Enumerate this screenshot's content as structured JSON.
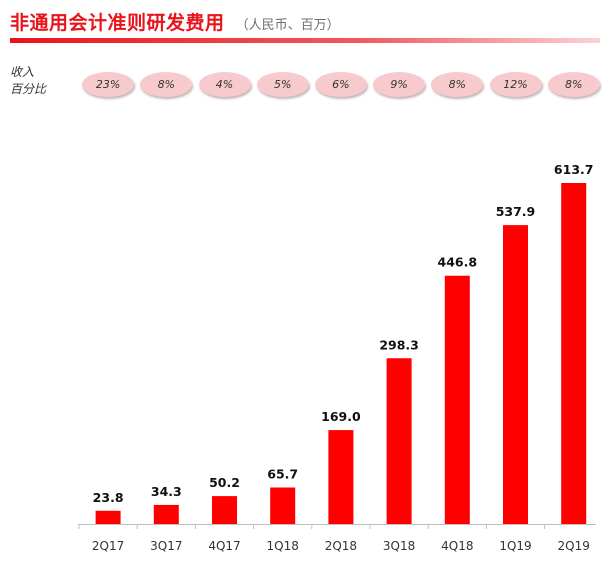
{
  "header": {
    "title": "非通用会计准则研发费用",
    "unit": "（人民币、百万）"
  },
  "ratio": {
    "label_line1": "收入",
    "label_line2": "百分比"
  },
  "colors": {
    "bar": "#ff0000",
    "accent": "#e8141b",
    "pill": "#f7cbcd"
  },
  "chart_data": {
    "type": "bar",
    "title": "非通用会计准则研发费用",
    "categories": [
      "2Q17",
      "3Q17",
      "4Q17",
      "1Q18",
      "2Q18",
      "3Q18",
      "4Q18",
      "1Q19",
      "2Q19"
    ],
    "values": [
      23.8,
      34.3,
      50.2,
      65.7,
      169.0,
      298.3,
      446.8,
      537.9,
      613.7
    ],
    "value_labels": [
      "23.8",
      "34.3",
      "50.2",
      "65.7",
      "169.0",
      "298.3",
      "446.8",
      "537.9",
      "613.7"
    ],
    "revenue_pct": [
      "23%",
      "8%",
      "4%",
      "5%",
      "6%",
      "9%",
      "8%",
      "12%",
      "8%"
    ],
    "ylim": [
      0,
      700
    ],
    "grid": false,
    "xlabel": "",
    "ylabel": ""
  }
}
